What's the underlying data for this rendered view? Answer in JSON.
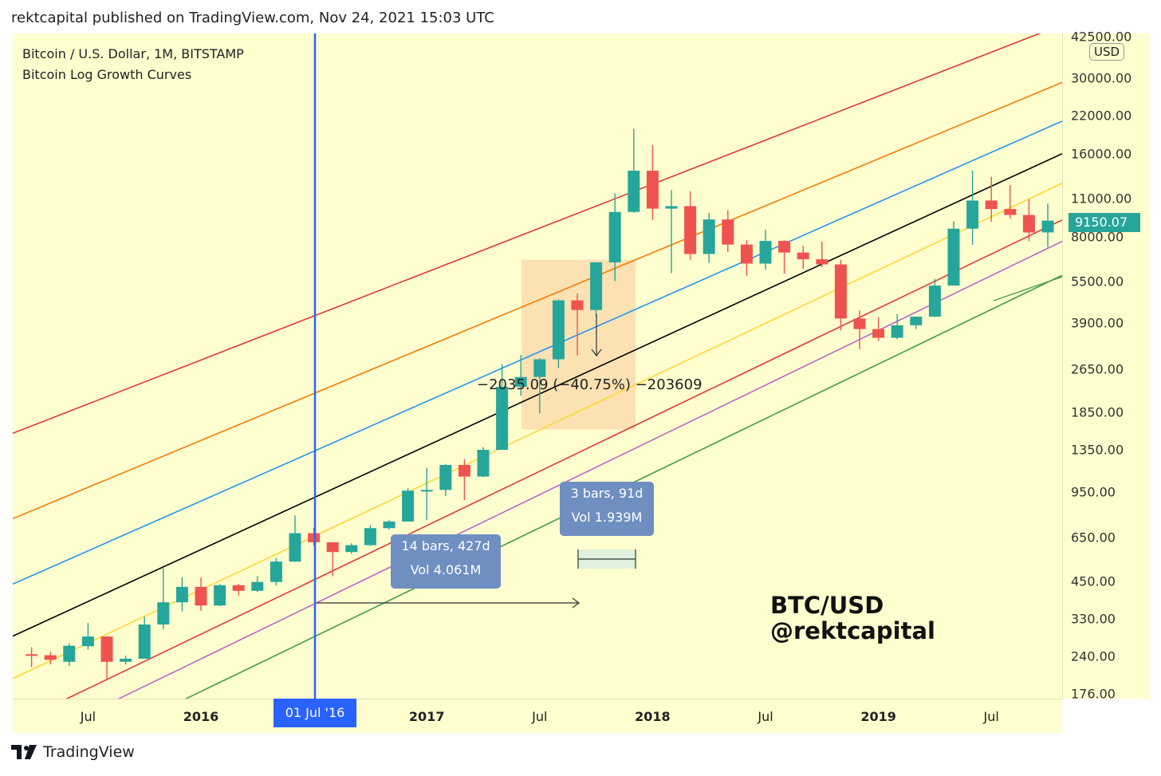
{
  "header": {
    "published": "rektcapital published on TradingView.com, Nov 24, 2021 15:03 UTC"
  },
  "legend": {
    "line1": "Bitcoin / U.S. Dollar, 1M, BITSTAMP",
    "line2": "Bitcoin Log Growth Curves"
  },
  "currency_label": "USD",
  "last_price_label": "9150.07",
  "crosshair_date_label": "01 Jul '16",
  "measure_box_1": {
    "bars": "14 bars, 427d",
    "vol": "Vol 4.061M"
  },
  "measure_box_2": {
    "bars": "3 bars, 91d",
    "vol": "Vol 1.939M"
  },
  "measure_pct": "−2035.09 (−40.75%) −203609",
  "watermark": {
    "line1": "BTC/USD",
    "line2": "@rektcapital"
  },
  "footer": {
    "brand": "TradingView"
  },
  "colors": {
    "up": "#26a69a",
    "down": "#ef5350",
    "background": "#fffecf",
    "crosshair": "#2962ff"
  },
  "chart_data": {
    "type": "candlestick",
    "scale": "log",
    "ylim": [
      176,
      42500
    ],
    "y_ticks": [
      "42500.00",
      "30000.00",
      "22000.00",
      "16000.00",
      "11000.00",
      "8000.00",
      "5500.00",
      "3900.00",
      "2650.00",
      "1850.00",
      "1350.00",
      "950.00",
      "650.00",
      "450.00",
      "330.00",
      "240.00",
      "176.00"
    ],
    "x_ticks": [
      "Jul",
      "2016",
      "Jul",
      "2017",
      "Jul",
      "2018",
      "Jul",
      "2019",
      "Jul"
    ],
    "x_tick_dates": [
      "2015-07",
      "2016-01",
      "2016-07",
      "2017-01",
      "2017-07",
      "2018-01",
      "2018-07",
      "2019-01",
      "2019-07"
    ],
    "candles": [
      {
        "t": "2015-04",
        "o": 245,
        "h": 260,
        "l": 220,
        "c": 243
      },
      {
        "t": "2015-05",
        "o": 243,
        "h": 250,
        "l": 225,
        "c": 234
      },
      {
        "t": "2015-06",
        "o": 230,
        "h": 268,
        "l": 222,
        "c": 263
      },
      {
        "t": "2015-07",
        "o": 262,
        "h": 318,
        "l": 255,
        "c": 284
      },
      {
        "t": "2015-08",
        "o": 284,
        "h": 285,
        "l": 200,
        "c": 230
      },
      {
        "t": "2015-09",
        "o": 230,
        "h": 242,
        "l": 225,
        "c": 236
      },
      {
        "t": "2015-10",
        "o": 236,
        "h": 335,
        "l": 236,
        "c": 314
      },
      {
        "t": "2015-11",
        "o": 314,
        "h": 502,
        "l": 302,
        "c": 378
      },
      {
        "t": "2015-12",
        "o": 378,
        "h": 465,
        "l": 350,
        "c": 430
      },
      {
        "t": "2016-01",
        "o": 430,
        "h": 465,
        "l": 352,
        "c": 368
      },
      {
        "t": "2016-02",
        "o": 368,
        "h": 440,
        "l": 366,
        "c": 436
      },
      {
        "t": "2016-03",
        "o": 436,
        "h": 440,
        "l": 400,
        "c": 416
      },
      {
        "t": "2016-04",
        "o": 416,
        "h": 470,
        "l": 412,
        "c": 448
      },
      {
        "t": "2016-05",
        "o": 448,
        "h": 547,
        "l": 436,
        "c": 531
      },
      {
        "t": "2016-06",
        "o": 531,
        "h": 780,
        "l": 530,
        "c": 673
      },
      {
        "t": "2016-07",
        "o": 673,
        "h": 704,
        "l": 605,
        "c": 624
      },
      {
        "t": "2016-08",
        "o": 624,
        "h": 625,
        "l": 470,
        "c": 575
      },
      {
        "t": "2016-09",
        "o": 575,
        "h": 619,
        "l": 567,
        "c": 609
      },
      {
        "t": "2016-10",
        "o": 609,
        "h": 719,
        "l": 606,
        "c": 702
      },
      {
        "t": "2016-11",
        "o": 702,
        "h": 752,
        "l": 692,
        "c": 742
      },
      {
        "t": "2016-12",
        "o": 742,
        "h": 980,
        "l": 742,
        "c": 960
      },
      {
        "t": "2017-01",
        "o": 960,
        "h": 1160,
        "l": 752,
        "c": 966
      },
      {
        "t": "2017-02",
        "o": 966,
        "h": 1200,
        "l": 917,
        "c": 1190
      },
      {
        "t": "2017-03",
        "o": 1190,
        "h": 1250,
        "l": 888,
        "c": 1080
      },
      {
        "t": "2017-04",
        "o": 1080,
        "h": 1380,
        "l": 1075,
        "c": 1350
      },
      {
        "t": "2017-05",
        "o": 1350,
        "h": 2760,
        "l": 1350,
        "c": 2286
      },
      {
        "t": "2017-06",
        "o": 2286,
        "h": 2980,
        "l": 2120,
        "c": 2480
      },
      {
        "t": "2017-07",
        "o": 2480,
        "h": 2900,
        "l": 1830,
        "c": 2875
      },
      {
        "t": "2017-08",
        "o": 2875,
        "h": 4740,
        "l": 2670,
        "c": 4703
      },
      {
        "t": "2017-09",
        "o": 4703,
        "h": 4980,
        "l": 2970,
        "c": 4339
      },
      {
        "t": "2017-10",
        "o": 4339,
        "h": 6470,
        "l": 4110,
        "c": 6458
      },
      {
        "t": "2017-11",
        "o": 6458,
        "h": 11500,
        "l": 5520,
        "c": 9838
      },
      {
        "t": "2017-12",
        "o": 9838,
        "h": 19700,
        "l": 9770,
        "c": 13880
      },
      {
        "t": "2018-01",
        "o": 13880,
        "h": 17200,
        "l": 9200,
        "c": 10114
      },
      {
        "t": "2018-02",
        "o": 10114,
        "h": 11800,
        "l": 5900,
        "c": 10326
      },
      {
        "t": "2018-03",
        "o": 10326,
        "h": 11700,
        "l": 6600,
        "c": 6925
      },
      {
        "t": "2018-04",
        "o": 6925,
        "h": 9760,
        "l": 6430,
        "c": 9240
      },
      {
        "t": "2018-05",
        "o": 9240,
        "h": 9990,
        "l": 7040,
        "c": 7494
      },
      {
        "t": "2018-06",
        "o": 7494,
        "h": 7770,
        "l": 5780,
        "c": 6391
      },
      {
        "t": "2018-07",
        "o": 6391,
        "h": 8480,
        "l": 6070,
        "c": 7725
      },
      {
        "t": "2018-08",
        "o": 7725,
        "h": 7760,
        "l": 5880,
        "c": 7011
      },
      {
        "t": "2018-09",
        "o": 7011,
        "h": 7410,
        "l": 6120,
        "c": 6626
      },
      {
        "t": "2018-10",
        "o": 6626,
        "h": 7680,
        "l": 6200,
        "c": 6349
      },
      {
        "t": "2018-11",
        "o": 6349,
        "h": 6600,
        "l": 3652,
        "c": 4040
      },
      {
        "t": "2018-12",
        "o": 4040,
        "h": 4320,
        "l": 3130,
        "c": 3700
      },
      {
        "t": "2019-01",
        "o": 3700,
        "h": 4080,
        "l": 3350,
        "c": 3440
      },
      {
        "t": "2019-02",
        "o": 3440,
        "h": 4200,
        "l": 3400,
        "c": 3820
      },
      {
        "t": "2019-03",
        "o": 3820,
        "h": 4110,
        "l": 3700,
        "c": 4105
      },
      {
        "t": "2019-04",
        "o": 4105,
        "h": 5630,
        "l": 4090,
        "c": 5320
      },
      {
        "t": "2019-05",
        "o": 5320,
        "h": 9090,
        "l": 5320,
        "c": 8555
      },
      {
        "t": "2019-06",
        "o": 8555,
        "h": 13900,
        "l": 7470,
        "c": 10820
      },
      {
        "t": "2019-07",
        "o": 10820,
        "h": 13200,
        "l": 9070,
        "c": 10080
      },
      {
        "t": "2019-08",
        "o": 10080,
        "h": 12330,
        "l": 9320,
        "c": 9590
      },
      {
        "t": "2019-09",
        "o": 9590,
        "h": 10930,
        "l": 7700,
        "c": 8290
      },
      {
        "t": "2019-10",
        "o": 8290,
        "h": 10550,
        "l": 7330,
        "c": 9150
      }
    ],
    "growth_curves": [
      {
        "color": "#e53935",
        "from": 1550,
        "to": 47000
      },
      {
        "color": "#f57c00",
        "from": 760,
        "to": 29000
      },
      {
        "color": "#2196f3",
        "from": 440,
        "to": 21000
      },
      {
        "color": "#000000",
        "from": 285,
        "to": 16000
      },
      {
        "color": "#fdd835",
        "from": 200,
        "to": 12500
      },
      {
        "color": "#e53935",
        "from": 136,
        "to": 9200
      },
      {
        "color": "#ba68c8",
        "from": 110,
        "to": 7700
      },
      {
        "color": "#43a047",
        "from": 84,
        "to": 5800
      }
    ]
  }
}
